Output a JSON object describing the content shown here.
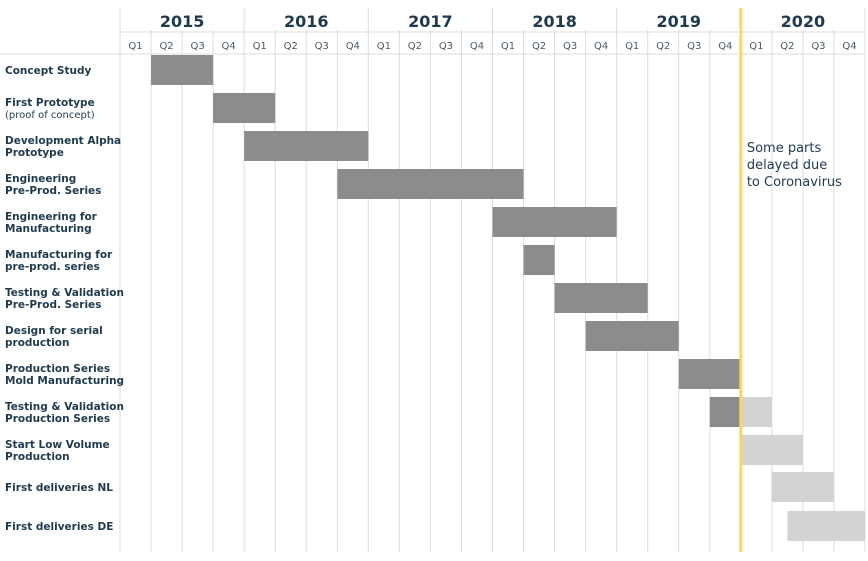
{
  "chart_data": {
    "type": "gantt",
    "years": [
      "2015",
      "2016",
      "2017",
      "2018",
      "2019",
      "2020"
    ],
    "quarters": [
      "Q1",
      "Q2",
      "Q3",
      "Q4"
    ],
    "tasks": [
      {
        "label": [
          "Concept Study"
        ],
        "start": 2015.25,
        "end": 2015.75
      },
      {
        "label": [
          "First Prototype",
          "(proof of concept)"
        ],
        "start": 2015.75,
        "end": 2016.25
      },
      {
        "label": [
          "Development Alpha",
          "Prototype"
        ],
        "start": 2016.0,
        "end": 2017.0
      },
      {
        "label": [
          "Engineering",
          "Pre-Prod. Series"
        ],
        "start": 2016.75,
        "end": 2018.25
      },
      {
        "label": [
          "Engineering for",
          "Manufacturing"
        ],
        "start": 2018.0,
        "end": 2019.0
      },
      {
        "label": [
          "Manufacturing for",
          "pre-prod. series"
        ],
        "start": 2018.25,
        "end": 2018.5
      },
      {
        "label": [
          "Testing & Validation",
          "Pre-Prod. Series"
        ],
        "start": 2018.5,
        "end": 2019.25
      },
      {
        "label": [
          "Design for serial",
          "production"
        ],
        "start": 2018.75,
        "end": 2019.5
      },
      {
        "label": [
          "Production Series",
          "Mold Manufacturing"
        ],
        "start": 2019.5,
        "end": 2020.0
      },
      {
        "label": [
          "Testing & Validation",
          "Production Series"
        ],
        "start": 2019.75,
        "end": 2020.25,
        "delayed_from": 2020.0
      },
      {
        "label": [
          "Start Low Volume",
          "Production"
        ],
        "start": 2020.0,
        "end": 2020.5,
        "delayed_from": 2020.0
      },
      {
        "label": [
          "First deliveries NL"
        ],
        "start": 2020.25,
        "end": 2020.75,
        "delayed_from": 2020.0
      },
      {
        "label": [
          "First deliveries DE"
        ],
        "start": 2020.375,
        "end": 2021.0,
        "delayed_from": 2020.0
      }
    ],
    "marker": {
      "x": 2020.0,
      "color": "#f5d76e"
    },
    "annotation": [
      "Some parts",
      "delayed due",
      "to Coronavirus"
    ],
    "colors": {
      "bar": "#8c8c8c",
      "delayed_bar": "#d3d3d3",
      "grid": "#dcdcdc",
      "text": "#1f3a4d"
    }
  }
}
